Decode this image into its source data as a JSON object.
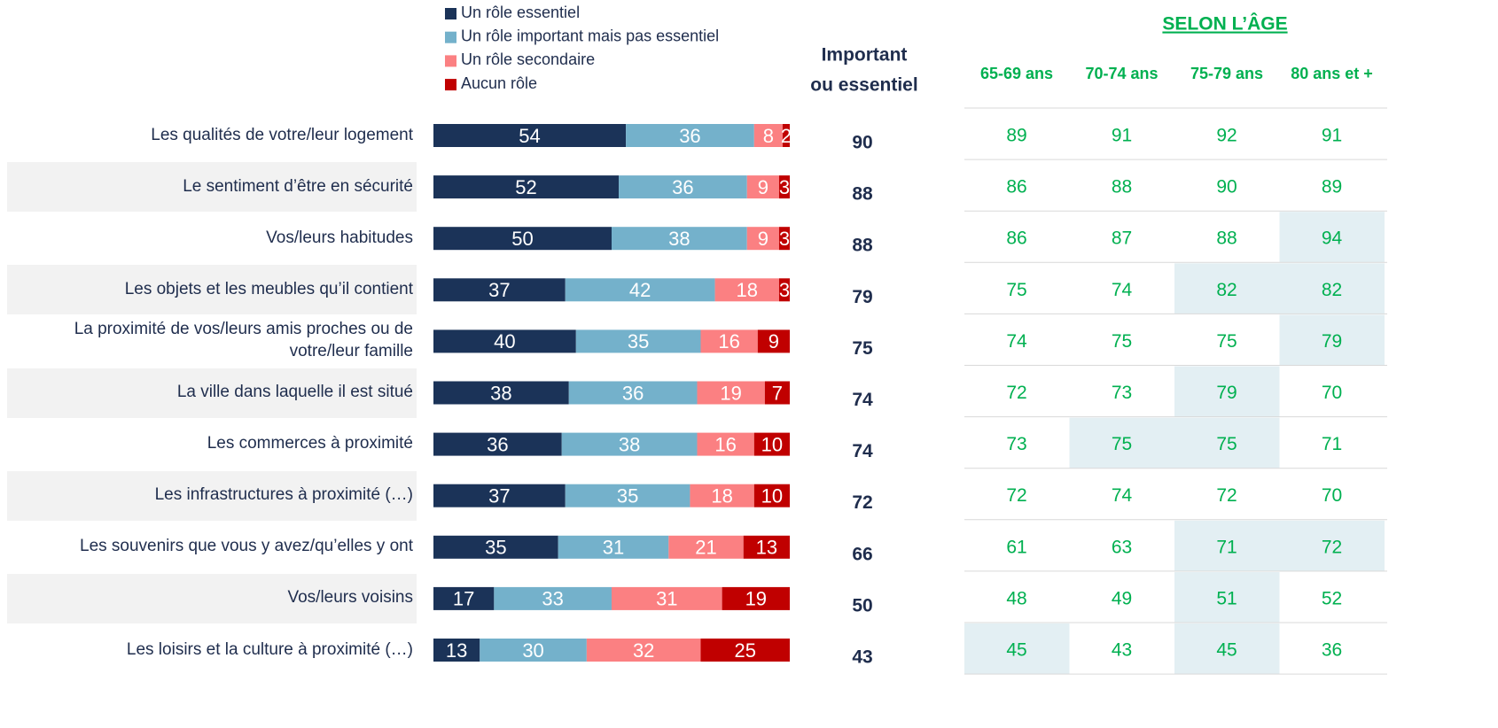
{
  "chart_data": {
    "type": "bar",
    "categories": [
      "Les qualités de votre/leur logement",
      "Le sentiment d’être en sécurité",
      "Vos/leurs habitudes",
      "Les objets et les meubles qu’il contient",
      "La proximité de vos/leurs amis proches ou de votre/leur famille",
      "La ville dans laquelle il est situé",
      "Les commerces à proximité",
      "Les infrastructures à proximité (…)",
      "Les souvenirs que vous y avez/qu’elles y ont",
      "Vos/leurs voisins",
      "Les loisirs et la culture à proximité (…)"
    ],
    "series": [
      {
        "name": "Un rôle essentiel",
        "color": "#1b3358",
        "values": [
          54,
          52,
          50,
          37,
          40,
          38,
          36,
          37,
          35,
          17,
          13
        ]
      },
      {
        "name": "Un rôle important mais pas essentiel",
        "color": "#74b1cb",
        "values": [
          36,
          36,
          38,
          42,
          35,
          36,
          38,
          35,
          31,
          33,
          30
        ]
      },
      {
        "name": "Un rôle secondaire",
        "color": "#fb8082",
        "values": [
          8,
          9,
          9,
          18,
          16,
          19,
          16,
          18,
          21,
          31,
          32
        ]
      },
      {
        "name": "Aucun rôle",
        "color": "#c00000",
        "values": [
          2,
          3,
          3,
          3,
          9,
          7,
          10,
          10,
          13,
          19,
          25
        ]
      }
    ],
    "xlim": [
      0,
      100
    ],
    "important": {
      "title": [
        "Important",
        "ou essentiel"
      ],
      "values": [
        90,
        88,
        88,
        79,
        75,
        74,
        74,
        72,
        66,
        50,
        43
      ]
    },
    "age": {
      "title": "SELON L’ÂGE",
      "columns": [
        "65-69 ans",
        "70-74 ans",
        "75-79 ans",
        "80 ans et +"
      ],
      "rows": [
        [
          89,
          91,
          92,
          91
        ],
        [
          86,
          88,
          90,
          89
        ],
        [
          86,
          87,
          88,
          94
        ],
        [
          75,
          74,
          82,
          82
        ],
        [
          74,
          75,
          75,
          79
        ],
        [
          72,
          73,
          79,
          70
        ],
        [
          73,
          75,
          75,
          71
        ],
        [
          72,
          74,
          72,
          70
        ],
        [
          61,
          63,
          71,
          72
        ],
        [
          48,
          49,
          51,
          52
        ],
        [
          45,
          43,
          45,
          36
        ]
      ],
      "highlighted": [
        [
          false,
          false,
          false,
          false
        ],
        [
          false,
          false,
          false,
          false
        ],
        [
          false,
          false,
          false,
          true
        ],
        [
          false,
          false,
          true,
          true
        ],
        [
          false,
          false,
          false,
          true
        ],
        [
          false,
          false,
          true,
          false
        ],
        [
          false,
          true,
          true,
          false
        ],
        [
          false,
          false,
          false,
          false
        ],
        [
          false,
          false,
          true,
          true
        ],
        [
          false,
          false,
          true,
          false
        ],
        [
          true,
          false,
          true,
          false
        ]
      ]
    }
  }
}
